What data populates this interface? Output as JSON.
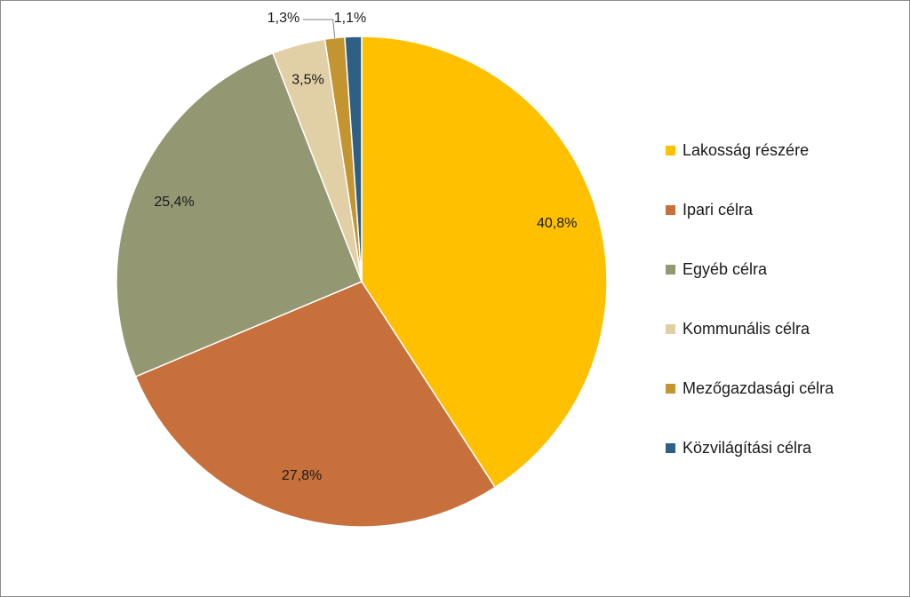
{
  "chart_data": {
    "type": "pie",
    "title": "",
    "categories": [
      "Lakosság részére",
      "Ipari célra",
      "Egyéb célra",
      "Kommunális célra",
      "Mezőgazdasági célra",
      "Közvilágítási célra"
    ],
    "values": [
      40.8,
      27.8,
      25.4,
      3.5,
      1.3,
      1.1
    ],
    "value_labels": [
      "40,8%",
      "27,8%",
      "25,4%",
      "3,5%",
      "1,3%",
      "1,1%"
    ],
    "colors": [
      "#FFC000",
      "#C8703C",
      "#939873",
      "#E1CFA6",
      "#C29531",
      "#305F85"
    ],
    "legend_position": "right",
    "start_angle": "12 o'clock",
    "direction": "clockwise"
  }
}
